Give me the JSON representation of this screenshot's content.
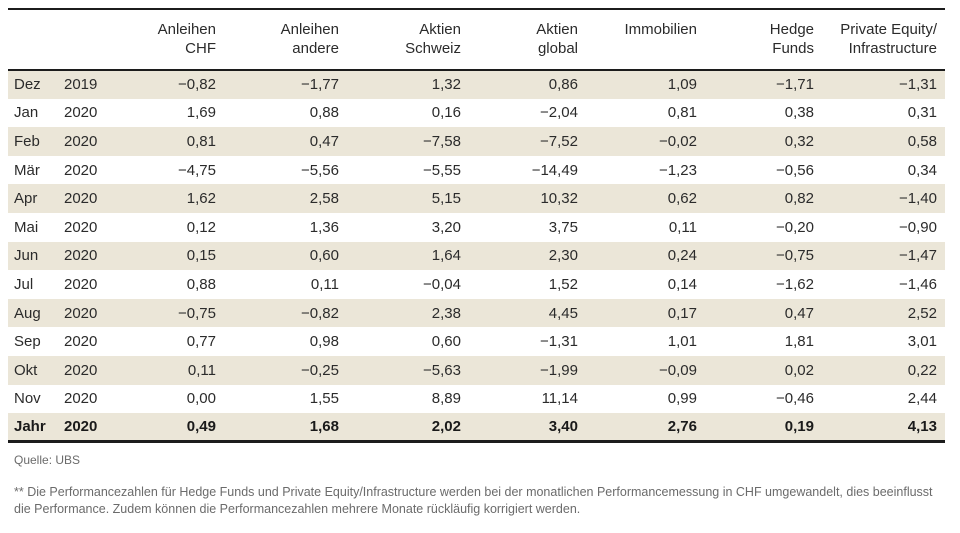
{
  "table": {
    "columns": [
      "",
      "",
      "Anleihen\nCHF",
      "Anleihen\nandere",
      "Aktien\nSchweiz",
      "Aktien\nglobal",
      "Immobilien",
      "Hedge\nFunds",
      "Private Equity/\nInfrastructure"
    ],
    "rows": [
      {
        "month": "Dez",
        "year": "2019",
        "values": [
          "−0,82",
          "−1,77",
          "1,32",
          "0,86",
          "1,09",
          "−1,71",
          "−1,31"
        ],
        "bold": false
      },
      {
        "month": "Jan",
        "year": "2020",
        "values": [
          "1,69",
          "0,88",
          "0,16",
          "−2,04",
          "0,81",
          "0,38",
          "0,31"
        ],
        "bold": false
      },
      {
        "month": "Feb",
        "year": "2020",
        "values": [
          "0,81",
          "0,47",
          "−7,58",
          "−7,52",
          "−0,02",
          "0,32",
          "0,58"
        ],
        "bold": false
      },
      {
        "month": "Mär",
        "year": "2020",
        "values": [
          "−4,75",
          "−5,56",
          "−5,55",
          "−14,49",
          "−1,23",
          "−0,56",
          "0,34"
        ],
        "bold": false
      },
      {
        "month": "Apr",
        "year": "2020",
        "values": [
          "1,62",
          "2,58",
          "5,15",
          "10,32",
          "0,62",
          "0,82",
          "−1,40"
        ],
        "bold": false
      },
      {
        "month": "Mai",
        "year": "2020",
        "values": [
          "0,12",
          "1,36",
          "3,20",
          "3,75",
          "0,11",
          "−0,20",
          "−0,90"
        ],
        "bold": false
      },
      {
        "month": "Jun",
        "year": "2020",
        "values": [
          "0,15",
          "0,60",
          "1,64",
          "2,30",
          "0,24",
          "−0,75",
          "−1,47"
        ],
        "bold": false
      },
      {
        "month": "Jul",
        "year": "2020",
        "values": [
          "0,88",
          "0,11",
          "−0,04",
          "1,52",
          "0,14",
          "−1,62",
          "−1,46"
        ],
        "bold": false
      },
      {
        "month": "Aug",
        "year": "2020",
        "values": [
          "−0,75",
          "−0,82",
          "2,38",
          "4,45",
          "0,17",
          "0,47",
          "2,52"
        ],
        "bold": false
      },
      {
        "month": "Sep",
        "year": "2020",
        "values": [
          "0,77",
          "0,98",
          "0,60",
          "−1,31",
          "1,01",
          "1,81",
          "3,01"
        ],
        "bold": false
      },
      {
        "month": "Okt",
        "year": "2020",
        "values": [
          "0,11",
          "−0,25",
          "−5,63",
          "−1,99",
          "−0,09",
          "0,02",
          "0,22"
        ],
        "bold": false
      },
      {
        "month": "Nov",
        "year": "2020",
        "values": [
          "0,00",
          "1,55",
          "8,89",
          "11,14",
          "0,99",
          "−0,46",
          "2,44"
        ],
        "bold": false
      },
      {
        "month": "Jahr",
        "year": "2020",
        "values": [
          "0,49",
          "1,68",
          "2,02",
          "3,40",
          "2,76",
          "0,19",
          "4,13"
        ],
        "bold": true
      }
    ]
  },
  "footer": {
    "source": "Quelle: UBS",
    "footnote": "** Die Performancezahlen für Hedge Funds und Private Equity/Infrastructure werden bei der monatlichen Performancemessung in CHF umgewandelt, dies beeinflusst die Performance. Zudem können die Performancezahlen mehrere Monate rückläufig korrigiert werden."
  },
  "colors": {
    "stripe": "#ebe6d8",
    "rule": "#1c1c1c",
    "text": "#2b2b2b",
    "muted": "#6b6b6b"
  }
}
